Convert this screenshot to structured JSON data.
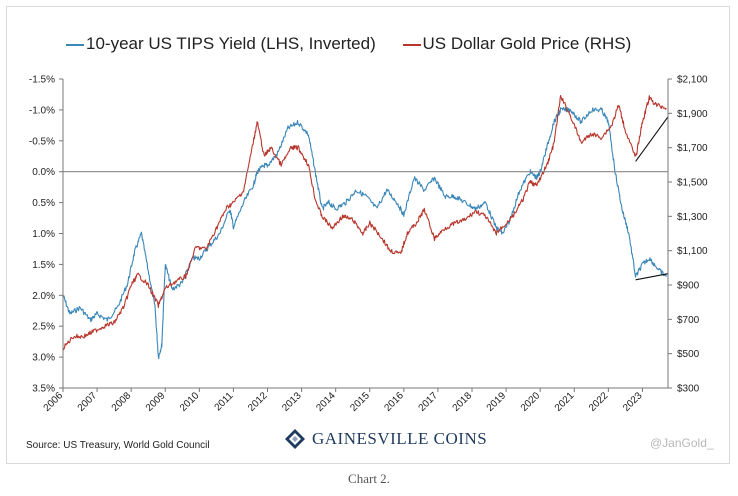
{
  "chart_data": {
    "type": "line",
    "title": "",
    "legend_placement": "top",
    "grid": false,
    "x_tick_labels": [
      "2006",
      "2007",
      "2008",
      "2009",
      "2010",
      "2011",
      "2012",
      "2013",
      "2014",
      "2015",
      "2016",
      "2017",
      "2018",
      "2019",
      "2020",
      "2021",
      "2022",
      "2023"
    ],
    "x_range": [
      2006.0,
      2023.75
    ],
    "y_left": {
      "label": "",
      "inverted": true,
      "range": [
        -1.5,
        3.5
      ],
      "ticks": [
        -1.5,
        -1.0,
        -0.5,
        0.0,
        0.5,
        1.0,
        1.5,
        2.0,
        2.5,
        3.0,
        3.5
      ],
      "tick_labels": [
        "-1.5%",
        "-1.0%",
        "-0.5%",
        "0.0%",
        "0.5%",
        "1.0%",
        "1.5%",
        "2.0%",
        "2.5%",
        "3.0%",
        "3.5%"
      ]
    },
    "y_right": {
      "label": "",
      "range": [
        300,
        2100
      ],
      "ticks": [
        300,
        500,
        700,
        900,
        1100,
        1300,
        1500,
        1700,
        1900,
        2100
      ],
      "tick_labels": [
        "$300",
        "$500",
        "$700",
        "$900",
        "$1,100",
        "$1,300",
        "$1,500",
        "$1,700",
        "$1,900",
        "$2,100"
      ]
    },
    "zero_line": 0.0,
    "series": [
      {
        "name": "10-year US TIPS Yield (LHS, Inverted)",
        "axis": "left",
        "color": "#3a87b8",
        "x": [
          2006.0,
          2006.2,
          2006.5,
          2006.8,
          2007.0,
          2007.3,
          2007.6,
          2007.9,
          2008.1,
          2008.3,
          2008.5,
          2008.7,
          2008.8,
          2008.9,
          2009.0,
          2009.2,
          2009.5,
          2009.8,
          2010.0,
          2010.3,
          2010.6,
          2010.9,
          2011.0,
          2011.3,
          2011.6,
          2011.7,
          2011.9,
          2012.0,
          2012.3,
          2012.6,
          2012.9,
          2013.2,
          2013.4,
          2013.6,
          2013.8,
          2014.0,
          2014.3,
          2014.6,
          2014.9,
          2015.2,
          2015.5,
          2015.8,
          2016.0,
          2016.3,
          2016.6,
          2016.9,
          2017.2,
          2017.5,
          2017.8,
          2018.1,
          2018.4,
          2018.7,
          2018.9,
          2019.1,
          2019.4,
          2019.7,
          2019.9,
          2020.0,
          2020.2,
          2020.4,
          2020.6,
          2020.9,
          2021.2,
          2021.5,
          2021.8,
          2022.0,
          2022.2,
          2022.4,
          2022.6,
          2022.8,
          2023.0,
          2023.2,
          2023.5,
          2023.7
        ],
        "values": [
          2.0,
          2.3,
          2.2,
          2.4,
          2.3,
          2.4,
          2.2,
          1.8,
          1.3,
          1.0,
          1.6,
          2.2,
          3.0,
          2.8,
          1.5,
          1.9,
          1.8,
          1.4,
          1.4,
          1.2,
          1.0,
          0.6,
          0.9,
          0.5,
          0.2,
          0.0,
          -0.1,
          -0.1,
          -0.3,
          -0.7,
          -0.8,
          -0.6,
          0.0,
          0.6,
          0.5,
          0.6,
          0.5,
          0.3,
          0.4,
          0.6,
          0.3,
          0.5,
          0.7,
          0.1,
          0.3,
          0.1,
          0.4,
          0.4,
          0.5,
          0.6,
          0.5,
          0.9,
          1.0,
          0.8,
          0.3,
          0.0,
          0.1,
          0.0,
          -0.4,
          -0.8,
          -1.0,
          -1.0,
          -0.8,
          -1.0,
          -1.0,
          -0.8,
          0.0,
          0.6,
          1.0,
          1.7,
          1.5,
          1.4,
          1.6,
          1.7
        ]
      },
      {
        "name": "US Dollar Gold Price (RHS)",
        "axis": "right",
        "color": "#b8352b",
        "x": [
          2006.0,
          2006.3,
          2006.6,
          2006.9,
          2007.2,
          2007.5,
          2007.8,
          2008.0,
          2008.2,
          2008.5,
          2008.8,
          2009.0,
          2009.3,
          2009.6,
          2009.9,
          2010.2,
          2010.5,
          2010.8,
          2011.0,
          2011.3,
          2011.6,
          2011.7,
          2011.9,
          2012.1,
          2012.4,
          2012.7,
          2012.9,
          2013.2,
          2013.4,
          2013.6,
          2013.9,
          2014.2,
          2014.5,
          2014.8,
          2015.0,
          2015.3,
          2015.6,
          2015.9,
          2016.1,
          2016.4,
          2016.6,
          2016.9,
          2017.2,
          2017.5,
          2017.8,
          2018.1,
          2018.4,
          2018.7,
          2018.9,
          2019.2,
          2019.5,
          2019.7,
          2019.9,
          2020.2,
          2020.4,
          2020.6,
          2020.9,
          2021.2,
          2021.5,
          2021.8,
          2022.1,
          2022.3,
          2022.5,
          2022.8,
          2023.0,
          2023.2,
          2023.4,
          2023.7
        ],
        "values": [
          530,
          600,
          600,
          630,
          660,
          680,
          780,
          900,
          960,
          900,
          780,
          880,
          920,
          950,
          1120,
          1110,
          1230,
          1350,
          1380,
          1450,
          1750,
          1850,
          1650,
          1700,
          1600,
          1700,
          1700,
          1600,
          1400,
          1300,
          1230,
          1300,
          1280,
          1200,
          1260,
          1190,
          1100,
          1080,
          1200,
          1270,
          1340,
          1170,
          1230,
          1260,
          1280,
          1330,
          1300,
          1200,
          1240,
          1300,
          1400,
          1500,
          1480,
          1600,
          1720,
          2000,
          1880,
          1730,
          1780,
          1760,
          1830,
          1950,
          1800,
          1640,
          1850,
          1990,
          1950,
          1930
        ]
      }
    ],
    "annotations": [
      {
        "type": "trendline",
        "axis": "right",
        "from": [
          2022.8,
          1620
        ],
        "to": [
          2023.75,
          1880
        ]
      },
      {
        "type": "trendline",
        "axis": "left",
        "from": [
          2022.8,
          1.75
        ],
        "to": [
          2023.75,
          1.65
        ]
      }
    ]
  },
  "legend": {
    "tips_label": "10-year US TIPS Yield (LHS, Inverted)",
    "gold_label": "US Dollar Gold Price (RHS)"
  },
  "footer": {
    "source": "Source: US Treasury, World Gold Council",
    "brand": "GAINESVILLE COINS",
    "handle": "@JanGold_"
  },
  "caption": "Chart 2."
}
